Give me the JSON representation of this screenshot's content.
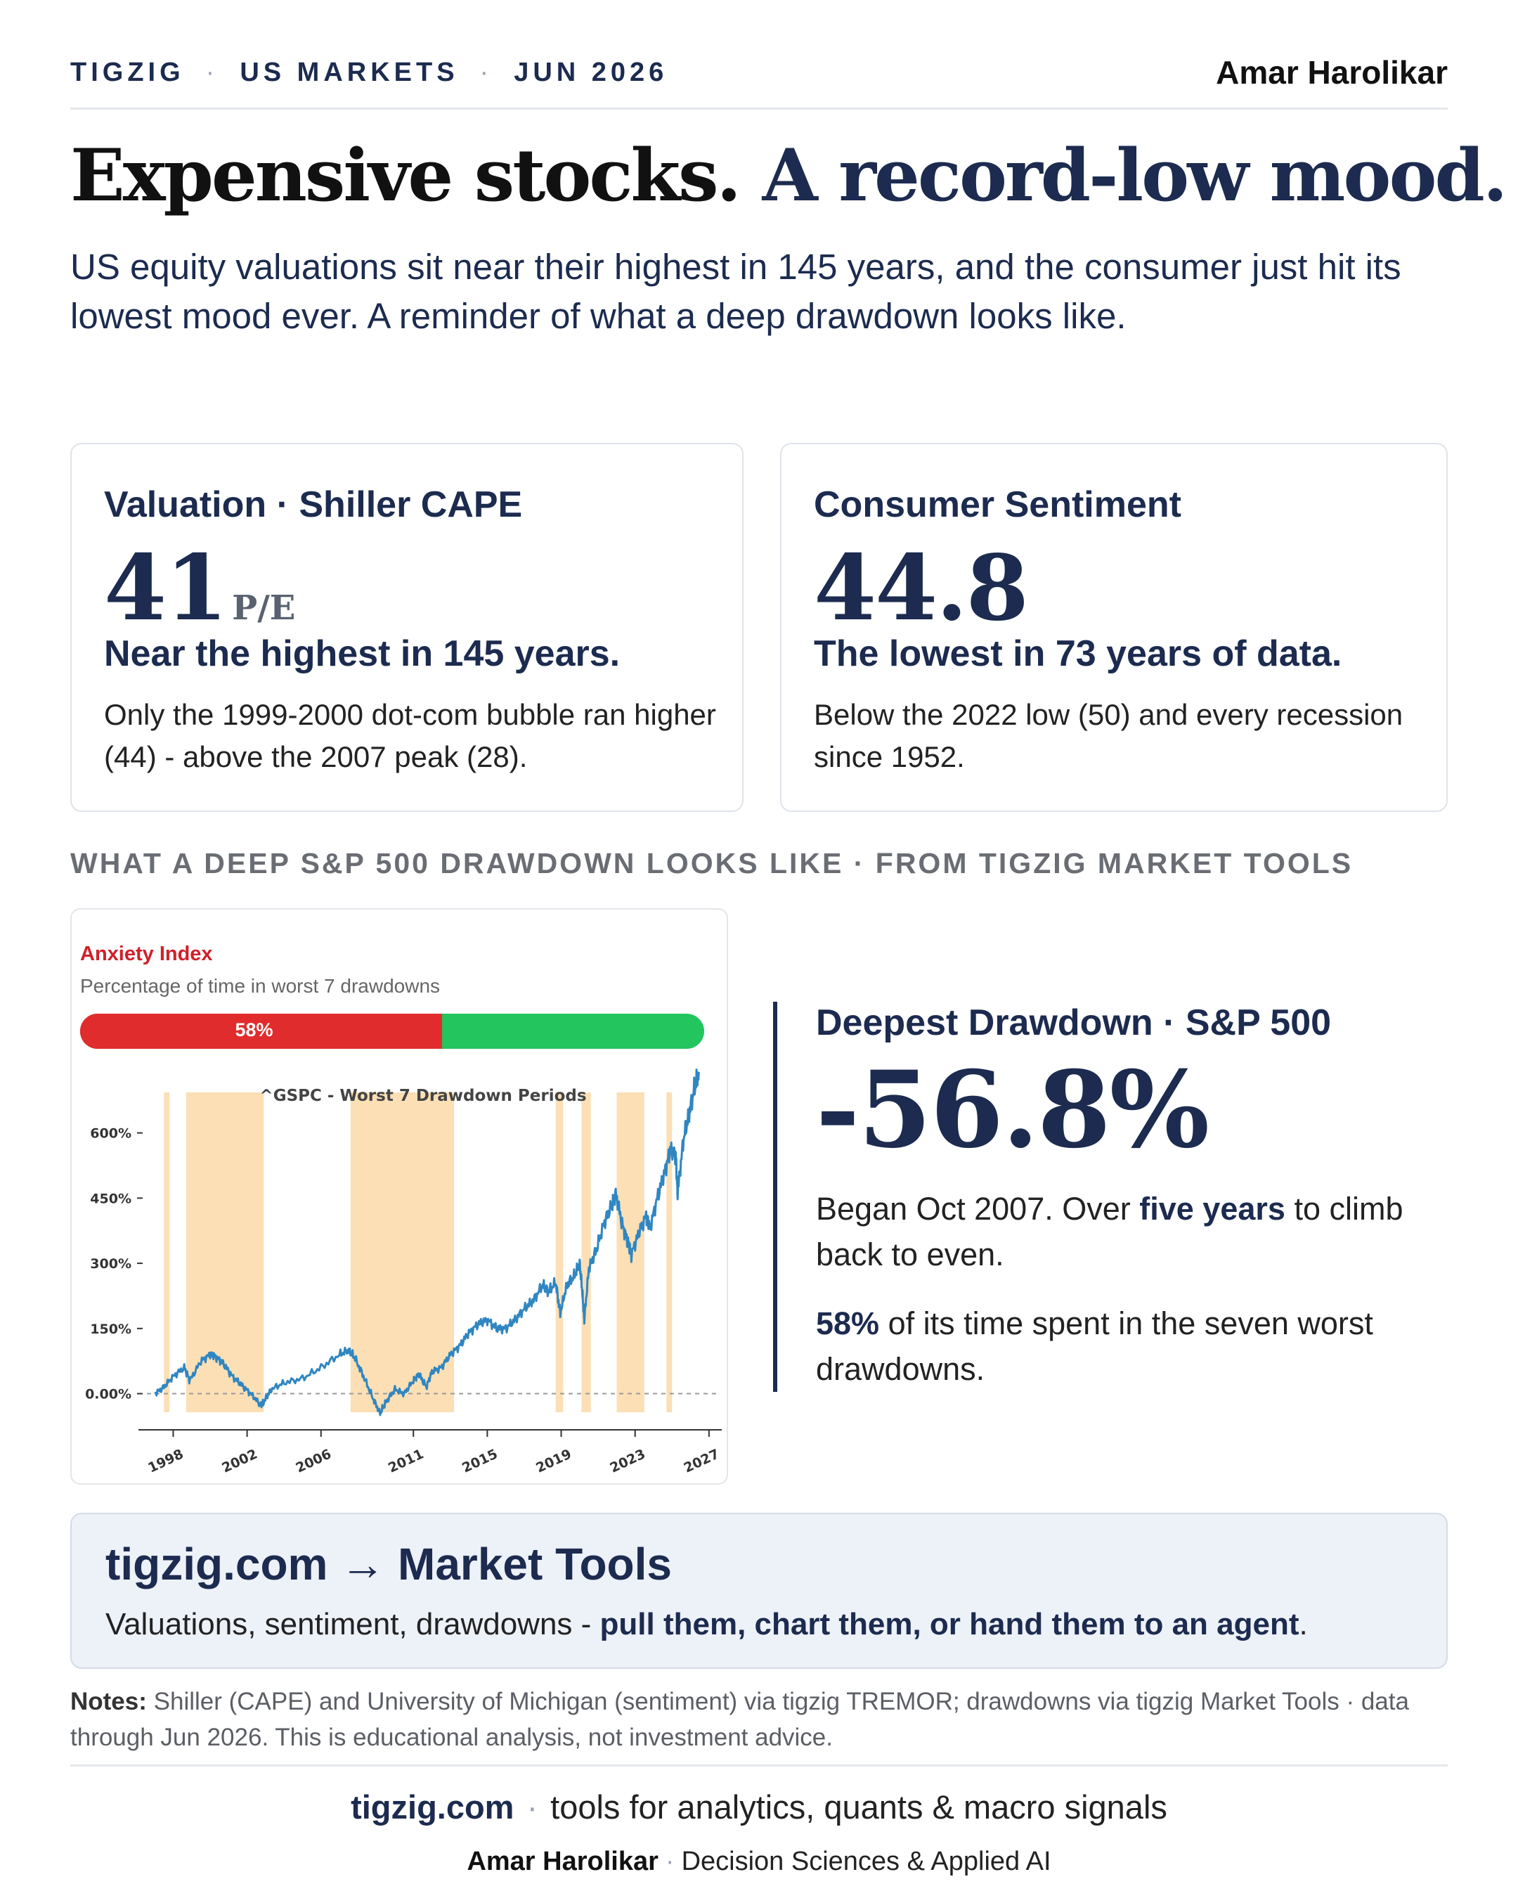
{
  "header": {
    "brand": "TIGZIG",
    "section": "US MARKETS",
    "date": "JUN 2026",
    "author": "Amar Harolikar"
  },
  "headline": {
    "part1": "Expensive stocks.",
    "part2": "A record-low mood."
  },
  "subtitle": "US equity valuations sit near their highest in 145 years, and the consumer just hit its lowest mood ever. A reminder of what a deep drawdown looks like.",
  "cards": {
    "valuation": {
      "title": "Valuation · Shiller CAPE",
      "value": "41",
      "unit": "P/E",
      "headline": "Near the highest in 145 years.",
      "description": "Only the 1999-2000 dot-com bubble ran higher (44) - above the 2007 peak (28)."
    },
    "sentiment": {
      "title": "Consumer Sentiment",
      "value": "44.8",
      "headline": "The lowest in 73 years of data.",
      "description": "Below the 2022 low (50) and every recession since 1952."
    }
  },
  "section_label": "WHAT A DEEP S&P 500 DRAWDOWN LOOKS LIKE · FROM TIGZIG MARKET TOOLS",
  "anxiety": {
    "title": "Anxiety Index",
    "subtitle": "Percentage of time in worst 7 drawdowns",
    "percent": 0.58,
    "percent_label": "58%",
    "colors": {
      "red": "#e02c2c",
      "green": "#22c55e"
    }
  },
  "chart_data": {
    "type": "line",
    "title": "^GSPC - Worst 7 Drawdown Periods",
    "xlabel": "",
    "ylabel": "",
    "x_ticks": [
      "1998",
      "2002",
      "2006",
      "2011",
      "2015",
      "2019",
      "2023",
      "2027"
    ],
    "y_ticks": [
      "0.00%",
      "150%",
      "300%",
      "450%",
      "600%"
    ],
    "xlim": [
      1996.5,
      2027.5
    ],
    "ylim": [
      -80,
      690
    ],
    "series": [
      {
        "color": "#2f86c1",
        "x": [
          1997.0,
          1997.5,
          1998.0,
          1998.6,
          1998.9,
          1999.5,
          2000.0,
          2000.3,
          2000.7,
          2001.2,
          2001.7,
          2002.2,
          2002.7,
          2002.9,
          2003.3,
          2004.0,
          2005.0,
          2006.0,
          2007.0,
          2007.5,
          2007.8,
          2008.3,
          2008.8,
          2009.2,
          2009.5,
          2010.0,
          2010.5,
          2011.0,
          2011.3,
          2011.7,
          2012.0,
          2012.5,
          2013.0,
          2013.5,
          2014.0,
          2014.5,
          2015.0,
          2015.5,
          2016.0,
          2016.5,
          2017.0,
          2017.5,
          2018.0,
          2018.3,
          2018.7,
          2018.95,
          2019.3,
          2019.7,
          2020.0,
          2020.15,
          2020.25,
          2020.5,
          2020.9,
          2021.3,
          2021.7,
          2021.95,
          2022.3,
          2022.6,
          2022.8,
          2023.2,
          2023.6,
          2023.8,
          2024.2,
          2024.6,
          2024.9,
          2025.2,
          2025.3,
          2025.6,
          2025.9,
          2026.2,
          2026.45
        ],
        "y": [
          0,
          15,
          40,
          60,
          30,
          75,
          90,
          85,
          70,
          40,
          20,
          0,
          -25,
          -20,
          10,
          25,
          35,
          60,
          90,
          100,
          85,
          40,
          -10,
          -45,
          -20,
          10,
          0,
          30,
          45,
          15,
          50,
          60,
          90,
          110,
          140,
          160,
          170,
          150,
          150,
          170,
          195,
          215,
          250,
          235,
          255,
          185,
          250,
          270,
          300,
          230,
          170,
          290,
          330,
          390,
          430,
          460,
          390,
          350,
          320,
          370,
          410,
          380,
          450,
          510,
          560,
          550,
          460,
          580,
          640,
          700,
          740
        ]
      }
    ],
    "drawdown_periods": [
      [
        1997.5,
        1997.8
      ],
      [
        1998.7,
        2002.9
      ],
      [
        2007.6,
        2013.2
      ],
      [
        2018.7,
        2019.1
      ],
      [
        2020.1,
        2020.6
      ],
      [
        2022.0,
        2023.5
      ],
      [
        2024.7,
        2025.0
      ]
    ],
    "grid": false
  },
  "drawdown": {
    "title": "Deepest Drawdown · S&P 500",
    "value": "-56.8%",
    "began_pre": "Began Oct 2007. Over ",
    "began_bold": "five years",
    "began_post": " to climb back to even.",
    "time_bold": "58%",
    "time_post": " of its time spent in the seven worst drawdowns."
  },
  "cta": {
    "site": "tigzig.com",
    "arrow": "→",
    "product": "Market Tools",
    "sub_pre": "Valuations, sentiment, drawdowns - ",
    "sub_bold": "pull them, chart them, or hand them to an agent",
    "sub_post": "."
  },
  "notes": {
    "label": "Notes:",
    "text": "Shiller (CAPE) and University of Michigan (sentiment) via tigzig TREMOR; drawdowns via tigzig Market Tools · data through Jun 2026. This is educational analysis, not investment advice."
  },
  "footer": {
    "site": "tigzig.com",
    "tagline": "tools for analytics, quants & macro signals",
    "author": "Amar Harolikar",
    "role": "Decision Sciences & Applied AI"
  }
}
